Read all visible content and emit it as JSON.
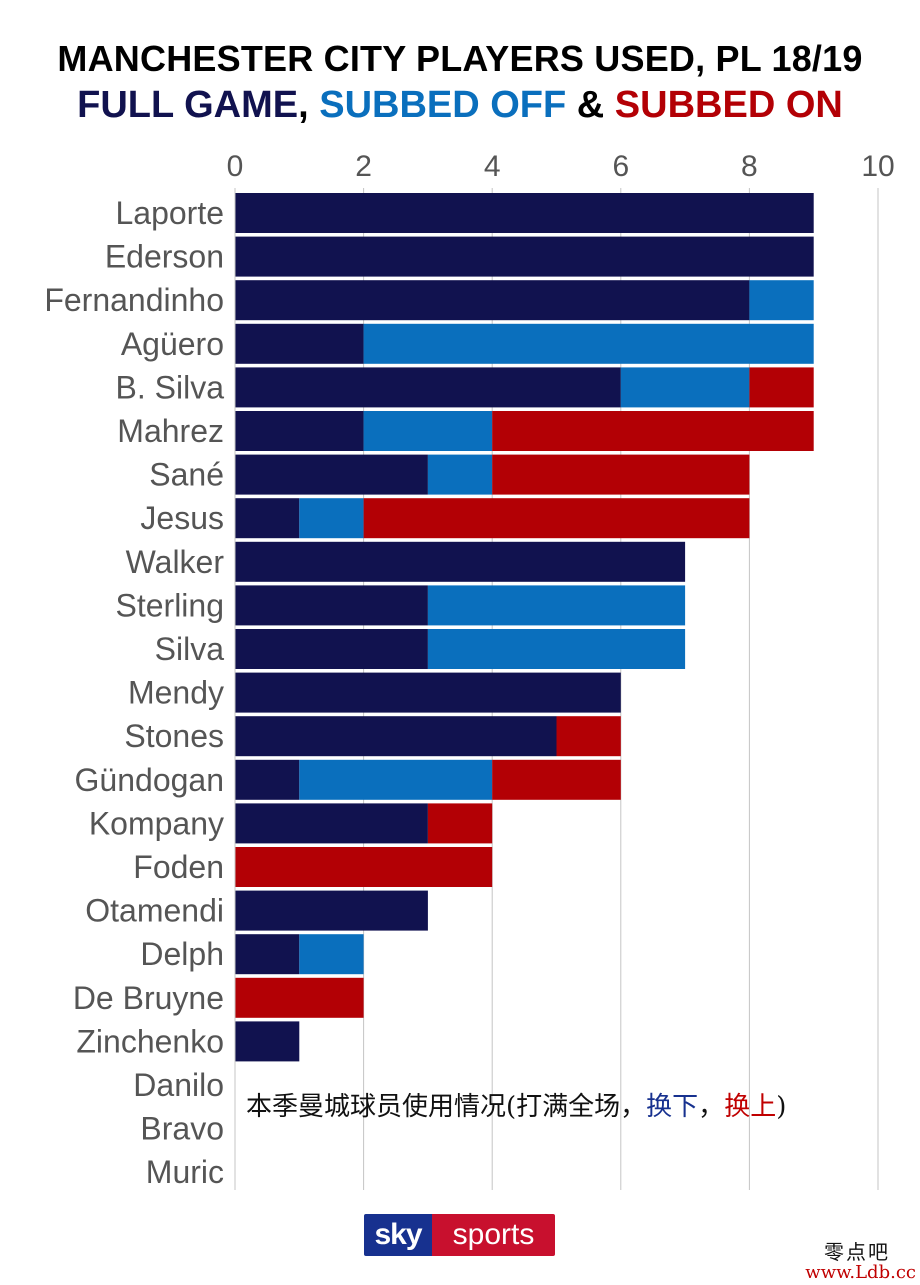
{
  "header": {
    "title": "MANCHESTER CITY PLAYERS USED, PL 18/19",
    "legend_full": "FULL GAME",
    "legend_sep1": ", ",
    "legend_off": "SUBBED OFF",
    "legend_sep2": " & ",
    "legend_on": "SUBBED ON"
  },
  "colors": {
    "full_game": "#11124f",
    "subbed_off": "#0a6fbd",
    "subbed_on": "#b30005",
    "grid": "#c4c4c4",
    "label": "#555555",
    "legend_amp": "#000000"
  },
  "chart_data": {
    "type": "bar",
    "orientation": "horizontal",
    "stacked": true,
    "title": "MANCHESTER CITY PLAYERS USED, PL 18/19",
    "xlim": [
      0,
      10
    ],
    "xticks": [
      "0",
      "2",
      "4",
      "6",
      "8",
      "10"
    ],
    "grid": true,
    "categories": [
      "Laporte",
      "Ederson",
      "Fernandinho",
      "Agüero",
      "B. Silva",
      "Mahrez",
      "Sané",
      "Jesus",
      "Walker",
      "Sterling",
      "Silva",
      "Mendy",
      "Stones",
      "Gündogan",
      "Kompany",
      "Foden",
      "Otamendi",
      "Delph",
      "De Bruyne",
      "Zinchenko",
      "Danilo",
      "Bravo",
      "Muric"
    ],
    "series": [
      {
        "name": "FULL GAME",
        "values": [
          9,
          9,
          8,
          2,
          6,
          2,
          3,
          1,
          7,
          3,
          3,
          6,
          5,
          1,
          3,
          0,
          3,
          1,
          0,
          1,
          0,
          0,
          0
        ]
      },
      {
        "name": "SUBBED OFF",
        "values": [
          0,
          0,
          1,
          7,
          2,
          2,
          1,
          1,
          0,
          4,
          4,
          0,
          0,
          3,
          0,
          0,
          0,
          1,
          0,
          0,
          0,
          0,
          0
        ]
      },
      {
        "name": "SUBBED ON",
        "values": [
          0,
          0,
          0,
          0,
          1,
          5,
          4,
          6,
          0,
          0,
          0,
          0,
          1,
          2,
          1,
          4,
          0,
          0,
          2,
          0,
          0,
          0,
          0
        ]
      }
    ],
    "annotation": {
      "text_main": "本季曼城球员使用情况(打满全场，",
      "text_off": "换下",
      "text_sep": "，",
      "text_on": "换上",
      "text_end": ")"
    }
  },
  "footer": {
    "logo_sky": "sky",
    "logo_sports": "sports",
    "watermark_cn": "零点吧",
    "watermark_url": "www.Ldb.cc"
  }
}
